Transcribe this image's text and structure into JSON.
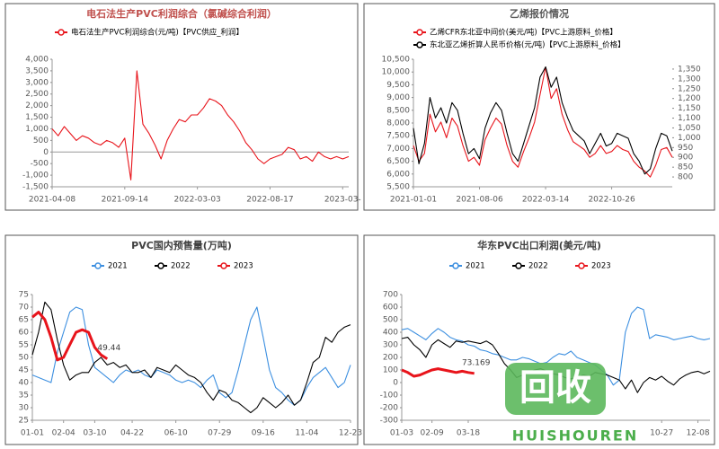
{
  "chart_data": [
    {
      "type": "line",
      "title": "电石法生产PVC利润综合（氯碱综合利润）",
      "title_color": "#c0504d",
      "legend": "column",
      "zero_line": true,
      "categories": [
        "2021-04-08",
        null,
        null,
        null,
        null,
        null,
        null,
        null,
        null,
        null,
        null,
        null,
        "2021-09-14",
        null,
        null,
        null,
        null,
        null,
        null,
        null,
        null,
        null,
        null,
        null,
        "2022-03-03",
        null,
        null,
        null,
        null,
        null,
        null,
        null,
        null,
        null,
        null,
        null,
        "2022-08-17",
        null,
        null,
        null,
        null,
        null,
        null,
        null,
        null,
        null,
        null,
        null,
        "2023-03-",
        null
      ],
      "series": [
        {
          "name": "电石法生产PVC利润综合(元/吨)【PVC供应_利润】",
          "color": "#e8141b",
          "values": [
            1000,
            700,
            1100,
            800,
            500,
            700,
            600,
            400,
            300,
            500,
            400,
            200,
            600,
            -1200,
            3500,
            1200,
            800,
            300,
            -300,
            500,
            1000,
            1400,
            1300,
            1600,
            1600,
            1900,
            2300,
            2200,
            2000,
            1600,
            1300,
            900,
            400,
            100,
            -300,
            -500,
            -300,
            -200,
            -100,
            200,
            100,
            -300,
            -200,
            -400,
            0,
            -200,
            -300,
            -200,
            -300,
            -200
          ]
        }
      ],
      "ylim": [
        -1500,
        4000
      ],
      "yticks": [
        {
          "value": -1500,
          "label": "-1,500"
        },
        {
          "value": -1000,
          "label": "-1,000"
        },
        -500,
        0,
        500,
        {
          "value": 1000,
          "label": "1,000"
        },
        {
          "value": 1500,
          "label": "1,500"
        },
        {
          "value": 2000,
          "label": "2,000"
        },
        {
          "value": 2500,
          "label": "2,500"
        },
        {
          "value": 3000,
          "label": "3,000"
        },
        {
          "value": 3500,
          "label": "3,500"
        },
        {
          "value": 4000,
          "label": "4,000"
        }
      ]
    },
    {
      "type": "line",
      "title": "乙烯报价情况",
      "title_color": "#595959",
      "legend": "column",
      "categories": [
        "2021-01-01",
        null,
        null,
        null,
        null,
        null,
        null,
        null,
        null,
        null,
        null,
        null,
        "2021-08-06",
        null,
        null,
        null,
        null,
        null,
        null,
        null,
        null,
        null,
        null,
        null,
        "2022-03-14",
        null,
        null,
        null,
        null,
        null,
        null,
        null,
        null,
        null,
        null,
        null,
        "2022-10-26",
        null,
        null,
        null,
        null,
        null,
        null,
        null,
        null,
        null,
        null,
        null
      ],
      "series": [
        {
          "name": "乙烯CFR东北亚中间价(美元/吨)【PVC上游原料_价格】",
          "color": "#e8141b",
          "axis": "y2",
          "values": [
            960,
            880,
            920,
            1120,
            1030,
            1080,
            1000,
            1100,
            1060,
            960,
            880,
            900,
            860,
            990,
            1050,
            1100,
            1070,
            960,
            880,
            850,
            930,
            1000,
            1080,
            1220,
            1360,
            1200,
            1250,
            1120,
            1040,
            980,
            960,
            940,
            900,
            920,
            960,
            920,
            930,
            960,
            940,
            930,
            880,
            850,
            830,
            800,
            860,
            940,
            950,
            900
          ]
        },
        {
          "name": "东北亚乙烯折算人民币价格(元/吨)【PVC上游原料_价格】",
          "color": "#000000",
          "values": [
            7800,
            6400,
            7200,
            9000,
            8200,
            8600,
            8000,
            8800,
            8500,
            7600,
            6800,
            7000,
            6600,
            7800,
            8400,
            8800,
            8500,
            7600,
            6800,
            6500,
            7200,
            7900,
            8600,
            9800,
            10200,
            9400,
            9800,
            8800,
            8200,
            7700,
            7500,
            7300,
            6800,
            7200,
            7600,
            7100,
            7200,
            7600,
            7500,
            7400,
            6800,
            6500,
            6000,
            6200,
            7000,
            7600,
            7500,
            6900
          ]
        }
      ],
      "ylim": [
        5500,
        10500
      ],
      "yticks": [
        {
          "value": 5500,
          "label": "5,500"
        },
        {
          "value": 6000,
          "label": "6,000"
        },
        {
          "value": 6500,
          "label": "6,500"
        },
        {
          "value": 7000,
          "label": "7,000"
        },
        {
          "value": 7500,
          "label": "7,500"
        },
        {
          "value": 8000,
          "label": "8,000"
        },
        {
          "value": 8500,
          "label": "8,500"
        },
        {
          "value": 9000,
          "label": "9,000"
        },
        {
          "value": 9500,
          "label": "9,500"
        },
        {
          "value": 10000,
          "label": "10,000"
        },
        {
          "value": 10500,
          "label": "10,500"
        }
      ],
      "y2lim": [
        750,
        1400
      ],
      "y2ticks": [
        800,
        850,
        900,
        950,
        {
          "value": 1000,
          "label": "1,000"
        },
        {
          "value": 1050,
          "label": "1,050"
        },
        {
          "value": 1100,
          "label": "1,100"
        },
        {
          "value": 1150,
          "label": "1,150"
        },
        {
          "value": 1200,
          "label": "1,200"
        },
        {
          "value": 1250,
          "label": "1,250"
        },
        {
          "value": 1300,
          "label": "1,300"
        },
        {
          "value": 1350,
          "label": "1,350"
        }
      ]
    },
    {
      "type": "line",
      "title": "PVC国内预售量(万吨)",
      "title_color": "#404040",
      "legend": "row",
      "categories": [
        "01-01",
        null,
        null,
        null,
        null,
        "02-04",
        null,
        null,
        null,
        null,
        "03-10",
        null,
        null,
        null,
        null,
        null,
        "04-22",
        null,
        null,
        null,
        null,
        null,
        null,
        "06-10",
        null,
        null,
        null,
        null,
        null,
        null,
        "07-29",
        null,
        null,
        null,
        null,
        null,
        null,
        "09-16",
        null,
        null,
        null,
        null,
        null,
        null,
        "11-04",
        null,
        null,
        null,
        null,
        null,
        null,
        "12-23"
      ],
      "series": [
        {
          "name": "2021",
          "color": "#3c8fe0",
          "values": [
            43,
            42,
            41,
            40,
            52,
            60,
            68,
            70,
            69,
            55,
            46,
            44,
            42,
            40,
            43,
            45,
            44,
            45,
            43,
            42,
            45,
            44,
            43,
            41,
            40,
            41,
            40,
            38,
            41,
            43,
            36,
            34,
            36,
            45,
            55,
            65,
            70,
            58,
            45,
            38,
            36,
            33,
            31,
            33,
            38,
            42,
            44,
            46,
            42,
            38,
            40,
            47
          ]
        },
        {
          "name": "2022",
          "color": "#000000",
          "values": [
            51,
            60,
            72,
            69,
            57,
            47,
            41,
            43,
            44,
            44,
            48,
            50,
            47,
            48,
            46,
            47,
            44,
            44,
            45,
            42,
            46,
            45,
            44,
            47,
            45,
            43,
            42,
            40,
            36,
            33,
            37,
            36,
            33,
            32,
            30,
            28,
            30,
            34,
            32,
            30,
            32,
            35,
            31,
            33,
            40,
            48,
            50,
            58,
            56,
            60,
            62,
            63
          ]
        },
        {
          "name": "2023",
          "color": "#e8141b",
          "line_width": 3,
          "label_last": true,
          "values": [
            66,
            68,
            65,
            58,
            49,
            50,
            55,
            60,
            61,
            60,
            54,
            51,
            49.44,
            null,
            null,
            null,
            null,
            null,
            null,
            null,
            null,
            null,
            null,
            null,
            null,
            null,
            null,
            null,
            null,
            null,
            null,
            null,
            null,
            null,
            null,
            null,
            null,
            null,
            null,
            null,
            null,
            null,
            null,
            null,
            null,
            null,
            null,
            null,
            null,
            null,
            null,
            null
          ]
        }
      ],
      "ylim": [
        25,
        75
      ],
      "yticks": [
        25,
        30,
        35,
        40,
        45,
        50,
        55,
        60,
        65,
        70,
        75
      ]
    },
    {
      "type": "line",
      "title": "华东PVC出口利润(美元/吨)",
      "title_color": "#404040",
      "legend": "row",
      "categories": [
        "01-03",
        null,
        null,
        null,
        null,
        "02-09",
        null,
        null,
        null,
        null,
        null,
        "03-18",
        null,
        null,
        null,
        null,
        null,
        null,
        null,
        null,
        null,
        null,
        null,
        null,
        null,
        null,
        null,
        null,
        null,
        null,
        null,
        null,
        null,
        null,
        null,
        null,
        null,
        null,
        null,
        null,
        null,
        null,
        null,
        "10-27",
        null,
        null,
        null,
        null,
        null,
        "12-08",
        null,
        null
      ],
      "series": [
        {
          "name": "2021",
          "color": "#3c8fe0",
          "values": [
            420,
            430,
            400,
            370,
            340,
            390,
            430,
            400,
            360,
            340,
            330,
            300,
            290,
            260,
            250,
            230,
            220,
            200,
            180,
            180,
            200,
            190,
            170,
            150,
            160,
            200,
            230,
            220,
            250,
            200,
            180,
            160,
            140,
            100,
            60,
            -20,
            20,
            400,
            550,
            600,
            580,
            350,
            380,
            370,
            360,
            340,
            350,
            360,
            370,
            350,
            340,
            350
          ]
        },
        {
          "name": "2022",
          "color": "#000000",
          "values": [
            350,
            360,
            300,
            260,
            200,
            300,
            340,
            310,
            280,
            330,
            320,
            330,
            320,
            310,
            330,
            300,
            230,
            150,
            100,
            40,
            60,
            80,
            100,
            110,
            90,
            70,
            60,
            40,
            30,
            40,
            60,
            50,
            80,
            70,
            60,
            40,
            20,
            -50,
            20,
            -80,
            0,
            40,
            20,
            50,
            10,
            -20,
            30,
            60,
            80,
            90,
            70,
            90
          ]
        },
        {
          "name": "2023",
          "color": "#e8141b",
          "line_width": 3,
          "label_last": true,
          "values": [
            100,
            80,
            50,
            60,
            80,
            100,
            110,
            100,
            90,
            80,
            90,
            80,
            73.169,
            null,
            null,
            null,
            null,
            null,
            null,
            null,
            null,
            null,
            null,
            null,
            null,
            null,
            null,
            null,
            null,
            null,
            null,
            null,
            null,
            null,
            null,
            null,
            null,
            null,
            null,
            null,
            null,
            null,
            null,
            null,
            null,
            null,
            null,
            null,
            null,
            null,
            null,
            null
          ]
        }
      ],
      "ylim": [
        -300,
        700
      ],
      "yticks": [
        -300,
        -200,
        -100,
        0,
        100,
        200,
        300,
        400,
        500,
        600,
        700
      ]
    }
  ],
  "watermark": {
    "text": "回收",
    "subtext": "HUISHOUREN"
  }
}
